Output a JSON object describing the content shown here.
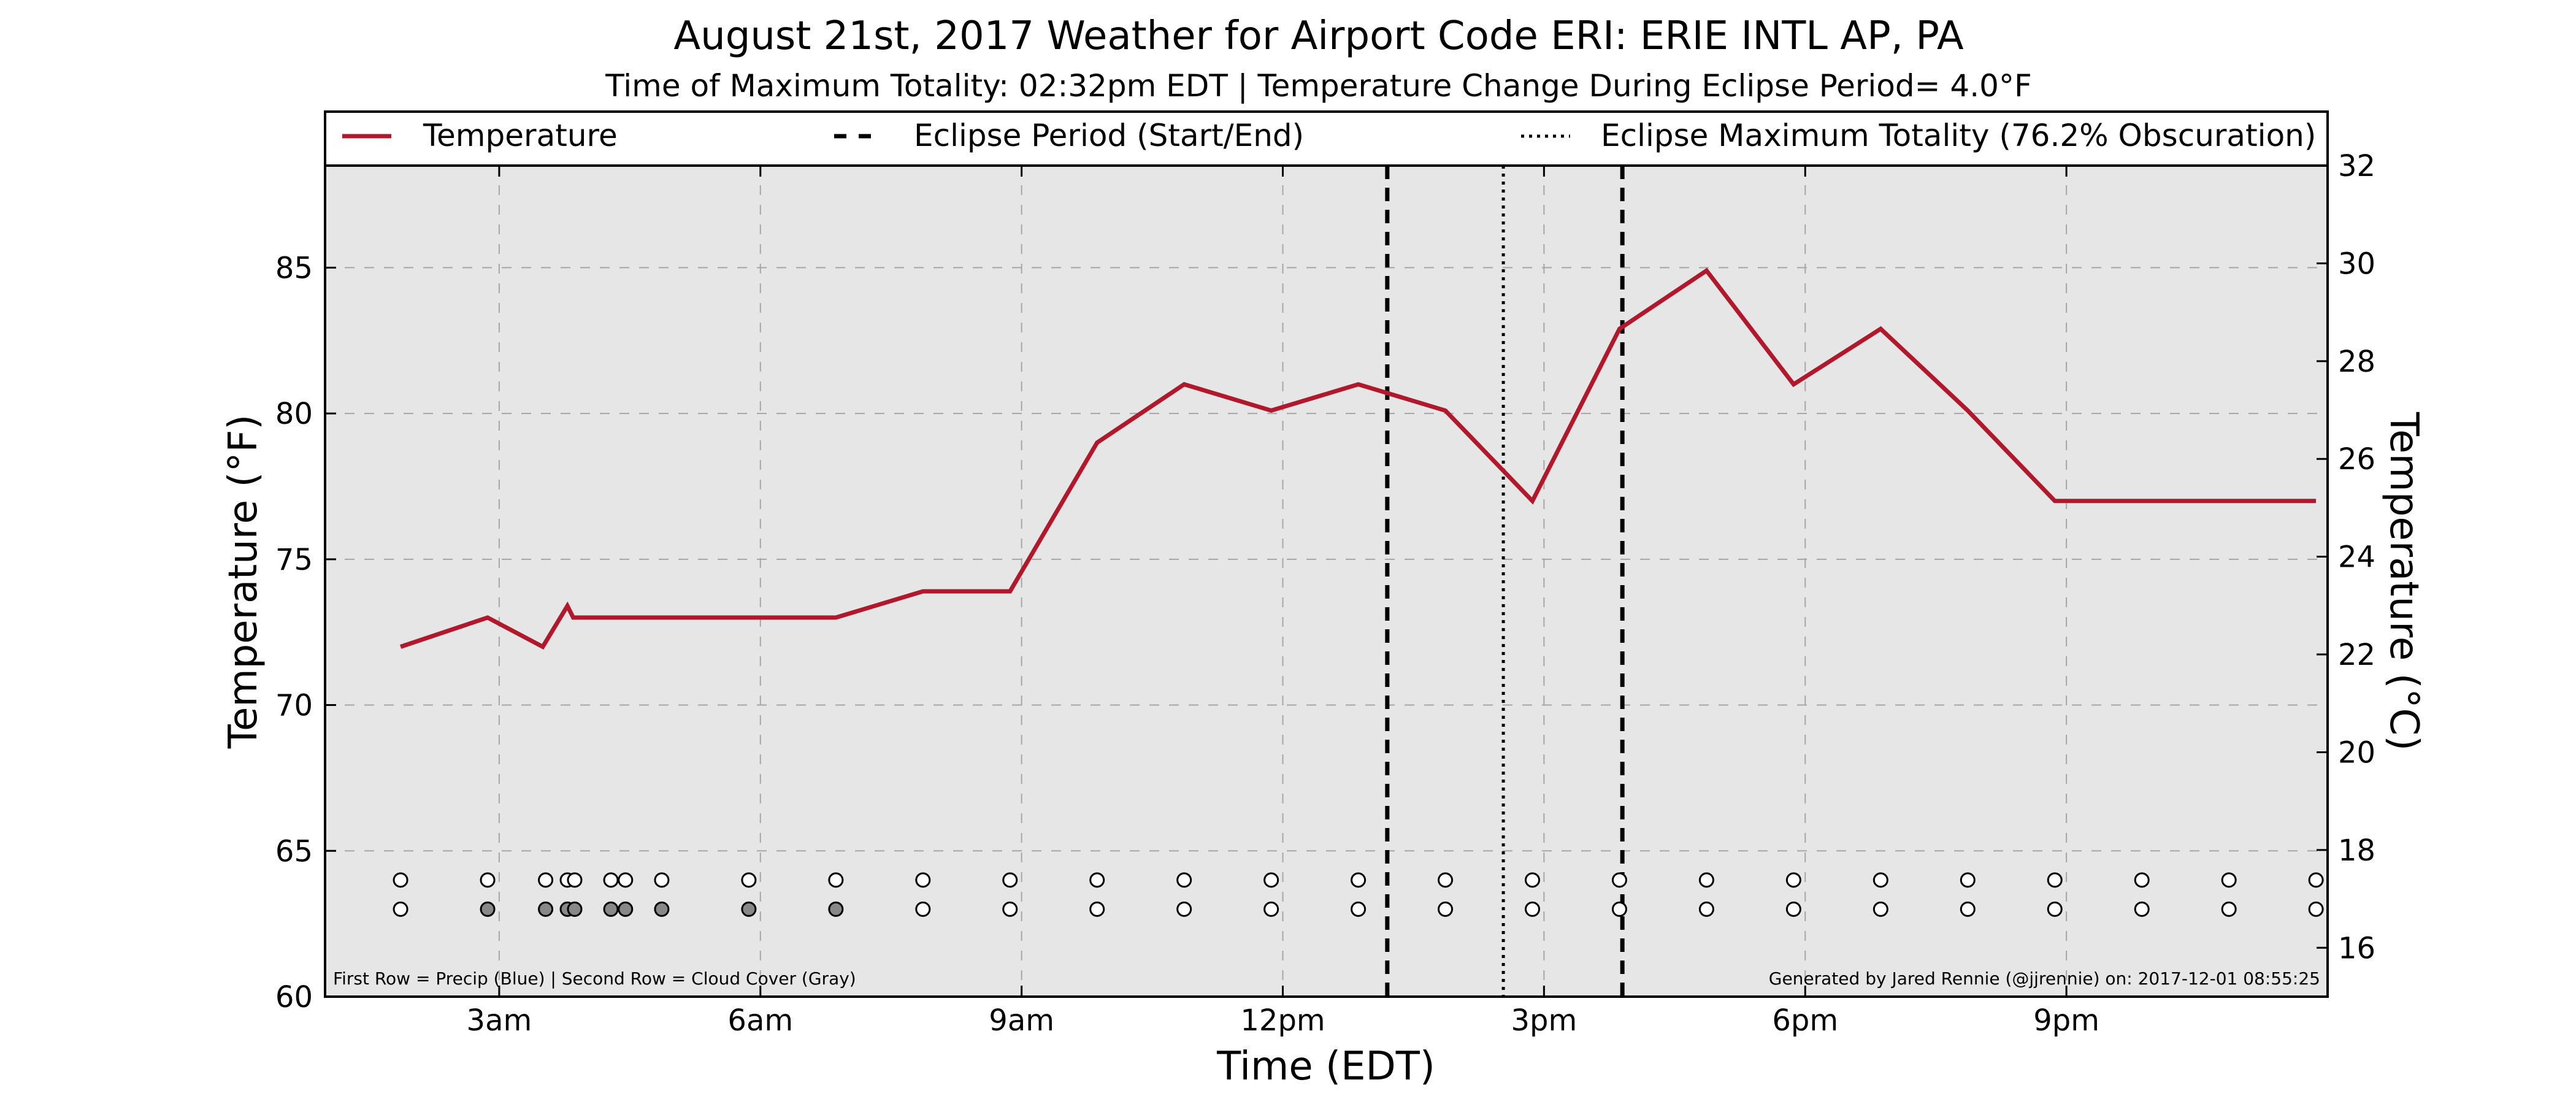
{
  "chart_data": {
    "type": "line",
    "title": "August 21st, 2017 Weather for Airport Code ERI: ERIE INTL AP, PA",
    "subtitle": "Time of Maximum Totality: 02:32pm EDT | Temperature Change During Eclipse Period= 4.0°F",
    "xlabel": "Time (EDT)",
    "ylabel": "Temperature (°F)",
    "ylabel_right": "Temperature (°C)",
    "xlim": [
      1.0,
      24.0
    ],
    "ylim": [
      60,
      88.5
    ],
    "ylim_right_celsius": [
      15.0,
      32.0
    ],
    "x_ticks": [
      {
        "x": 3,
        "label": "3am"
      },
      {
        "x": 6,
        "label": "6am"
      },
      {
        "x": 9,
        "label": "9am"
      },
      {
        "x": 12,
        "label": "12pm"
      },
      {
        "x": 15,
        "label": "3pm"
      },
      {
        "x": 18,
        "label": "6pm"
      },
      {
        "x": 21,
        "label": "9pm"
      }
    ],
    "y_ticks": [
      60,
      65,
      70,
      75,
      80,
      85
    ],
    "y_ticks_right": [
      16,
      18,
      20,
      22,
      24,
      26,
      28,
      30,
      32
    ],
    "grid": true,
    "legend_position": "top",
    "series": [
      {
        "name": "Temperature",
        "color": "#b2182b",
        "x": [
          1.867,
          2.867,
          3.5,
          3.783,
          3.85,
          4.333,
          5.867,
          6.867,
          7.867,
          8.867,
          9.867,
          10.867,
          11.867,
          12.867,
          13.867,
          14.867,
          15.867,
          16.867,
          17.867,
          18.867,
          19.867,
          20.867,
          21.867,
          22.867,
          23.867
        ],
        "y": [
          72.0,
          73.0,
          72.0,
          73.4,
          73.0,
          73.0,
          73.0,
          73.0,
          73.9,
          73.9,
          79.0,
          81.0,
          80.1,
          81.0,
          80.1,
          77.0,
          82.9,
          84.9,
          81.0,
          82.9,
          80.1,
          77.0,
          77.0,
          77.0,
          77.0
        ]
      }
    ],
    "eclipse_period": {
      "name": "Eclipse Period (Start/End)",
      "start": 13.2,
      "end": 15.9
    },
    "eclipse_max": {
      "name": "Eclipse Maximum Totality (76.2% Obscuration)",
      "x": 14.533
    },
    "precip_row": {
      "y": 64,
      "x": [
        1.867,
        2.867,
        3.533,
        3.783,
        3.867,
        4.283,
        4.45,
        4.867,
        5.867,
        6.867,
        7.867,
        8.867,
        9.867,
        10.867,
        11.867,
        12.867,
        13.867,
        14.867,
        15.867,
        16.867,
        17.867,
        18.867,
        19.867,
        20.867,
        21.867,
        22.867,
        23.867
      ],
      "filled": [
        false,
        false,
        false,
        false,
        false,
        false,
        false,
        false,
        false,
        false,
        false,
        false,
        false,
        false,
        false,
        false,
        false,
        false,
        false,
        false,
        false,
        false,
        false,
        false,
        false,
        false,
        false
      ]
    },
    "cloud_row": {
      "y": 63,
      "x": [
        1.867,
        2.867,
        3.533,
        3.783,
        3.867,
        4.283,
        4.45,
        4.867,
        5.867,
        6.867,
        7.867,
        8.867,
        9.867,
        10.867,
        11.867,
        12.867,
        13.867,
        14.867,
        15.867,
        16.867,
        17.867,
        18.867,
        19.867,
        20.867,
        21.867,
        22.867,
        23.867
      ],
      "filled": [
        false,
        true,
        true,
        true,
        true,
        true,
        true,
        true,
        true,
        true,
        false,
        false,
        false,
        false,
        false,
        false,
        false,
        false,
        false,
        false,
        false,
        false,
        false,
        false,
        false,
        false,
        false
      ]
    },
    "note_left": "First Row = Precip (Blue) | Second Row = Cloud Cover (Gray)",
    "note_right": "Generated by Jared Rennie (@jjrennie) on: 2017-12-01 08:55:25"
  }
}
